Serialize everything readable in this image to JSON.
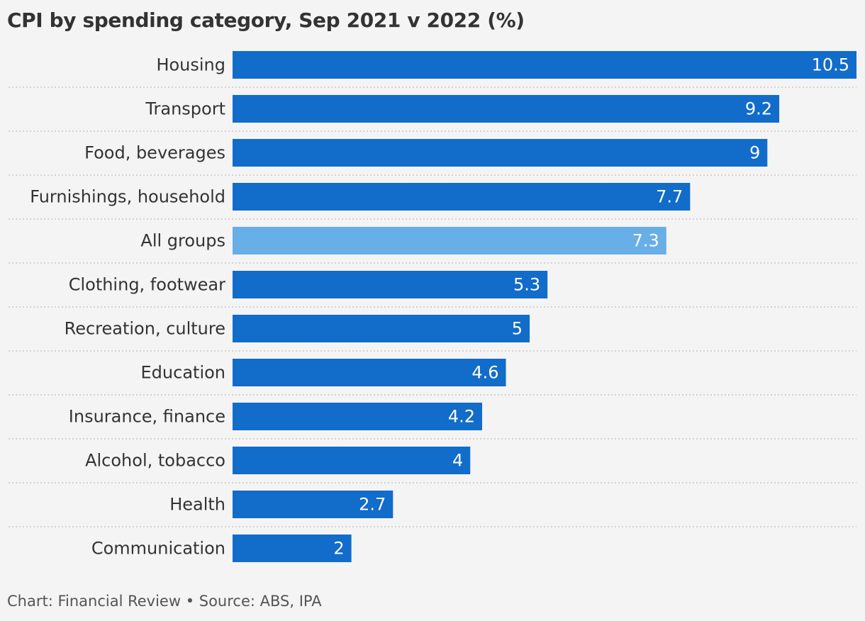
{
  "title": "CPI by spending category, Sep 2021 v 2022 (%)",
  "footer": "Chart: Financial Review • Source: ABS, IPA",
  "colors": {
    "bar": "#116cca",
    "highlight": "#68aee7",
    "label_text": "#333333",
    "value_text": "#ffffff",
    "gridline": "#c8c8c8"
  },
  "chart_data": {
    "type": "bar",
    "orientation": "horizontal",
    "title": "CPI by spending category, Sep 2021 v 2022 (%)",
    "xlabel": "",
    "ylabel": "",
    "xlim": [
      0,
      10.5
    ],
    "grid": false,
    "categories": [
      "Housing",
      "Transport",
      "Food, beverages",
      "Furnishings, household",
      "All groups",
      "Clothing, footwear",
      "Recreation, culture",
      "Education",
      "Insurance, finance",
      "Alcohol, tobacco",
      "Health",
      "Communication"
    ],
    "values": [
      10.5,
      9.2,
      9,
      7.7,
      7.3,
      5.3,
      5,
      4.6,
      4.2,
      4,
      2.7,
      2
    ],
    "value_labels": [
      "10.5",
      "9.2",
      "9",
      "7.7",
      "7.3",
      "5.3",
      "5",
      "4.6",
      "4.2",
      "4",
      "2.7",
      "2"
    ],
    "highlighted_category": "All groups"
  }
}
